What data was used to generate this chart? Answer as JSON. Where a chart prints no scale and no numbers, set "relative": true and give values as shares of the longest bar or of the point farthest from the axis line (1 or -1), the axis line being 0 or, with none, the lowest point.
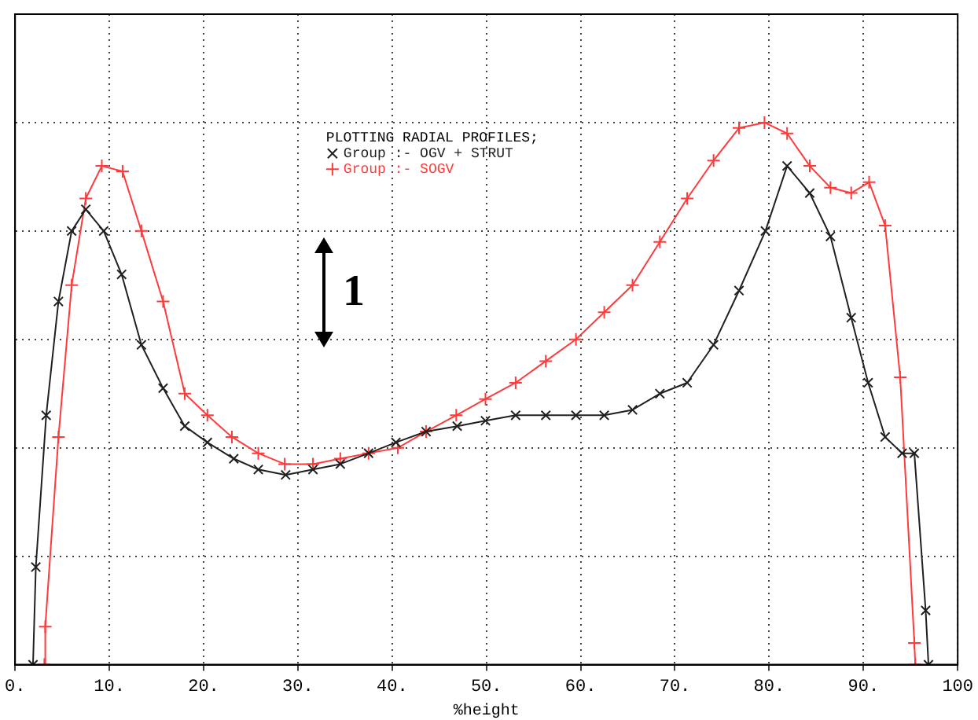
{
  "chart_data": {
    "type": "line",
    "relative": true,
    "xlabel": "%height",
    "legend_title": "PLOTTING RADIAL PROFILES;",
    "legend": "top",
    "grid": true,
    "line_style": "solid",
    "xlim": [
      0,
      100
    ],
    "xticks": [
      {
        "value": 0,
        "label": "0."
      },
      {
        "value": 10,
        "label": "10."
      },
      {
        "value": 20,
        "label": "20."
      },
      {
        "value": 30,
        "label": "30."
      },
      {
        "value": 40,
        "label": "40."
      },
      {
        "value": 50,
        "label": "50."
      },
      {
        "value": 60,
        "label": "60."
      },
      {
        "value": 70,
        "label": "70."
      },
      {
        "value": 80,
        "label": "80."
      },
      {
        "value": 90,
        "label": "90."
      },
      100
    ],
    "annotations": [
      "1"
    ],
    "series": [
      {
        "name": "Group :- OGV + STRUT",
        "color": "#202020",
        "marker": "cross",
        "x": [
          1.9,
          2.2,
          3.3,
          4.6,
          6.0,
          7.5,
          9.4,
          11.3,
          13.4,
          15.7,
          18.0,
          20.4,
          23.2,
          25.8,
          28.7,
          31.6,
          34.5,
          37.5,
          40.4,
          43.6,
          46.9,
          49.9,
          53.1,
          56.3,
          59.5,
          62.5,
          65.5,
          68.4,
          71.3,
          74.1,
          76.8,
          79.6,
          81.9,
          84.3,
          86.5,
          88.7,
          90.5,
          92.3,
          94.1,
          95.4,
          96.6,
          96.9
        ],
        "values": [
          0,
          0.18,
          0.46,
          0.67,
          0.8,
          0.84,
          0.8,
          0.72,
          0.59,
          0.51,
          0.44,
          0.41,
          0.38,
          0.36,
          0.35,
          0.36,
          0.37,
          0.39,
          0.41,
          0.43,
          0.44,
          0.45,
          0.46,
          0.46,
          0.46,
          0.46,
          0.47,
          0.5,
          0.52,
          0.59,
          0.69,
          0.8,
          0.92,
          0.87,
          0.79,
          0.64,
          0.52,
          0.42,
          0.39,
          0.39,
          0.1,
          0
        ]
      },
      {
        "name": "Group :- SOGV",
        "color": "#ff3a3a",
        "marker": "plus",
        "x": [
          3.1,
          3.2,
          4.6,
          6.0,
          7.5,
          9.2,
          11.4,
          13.4,
          15.7,
          18.0,
          20.4,
          23.0,
          25.8,
          28.6,
          31.6,
          34.5,
          37.5,
          40.6,
          43.6,
          46.8,
          49.9,
          53.1,
          56.3,
          59.5,
          62.5,
          65.5,
          68.4,
          71.3,
          74.1,
          76.8,
          79.5,
          81.9,
          84.3,
          86.5,
          88.7,
          90.6,
          92.3,
          93.9,
          95.4,
          95.5
        ],
        "values": [
          0,
          0.07,
          0.42,
          0.7,
          0.86,
          0.92,
          0.91,
          0.8,
          0.67,
          0.5,
          0.46,
          0.42,
          0.39,
          0.37,
          0.37,
          0.38,
          0.39,
          0.4,
          0.43,
          0.46,
          0.49,
          0.52,
          0.56,
          0.6,
          0.65,
          0.7,
          0.78,
          0.86,
          0.93,
          0.99,
          1.0,
          0.98,
          0.92,
          0.88,
          0.87,
          0.89,
          0.81,
          0.53,
          0.04,
          0
        ]
      }
    ]
  }
}
